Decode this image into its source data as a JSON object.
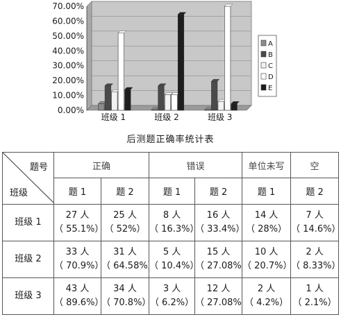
{
  "chart_data": {
    "type": "bar",
    "categories": [
      "班级 1",
      "班级 2",
      "班级 3"
    ],
    "series": [
      {
        "name": "A",
        "color": "#8c8c8c",
        "values": [
          4.5,
          0.5,
          0.5
        ]
      },
      {
        "name": "B",
        "color": "#4a4a4a",
        "values": [
          16.5,
          16.5,
          19.5
        ]
      },
      {
        "name": "C",
        "color": "#f2f2f2",
        "values": [
          12.5,
          10.5,
          6.0
        ]
      },
      {
        "name": "D",
        "color": "#ffffff",
        "values": [
          52.0,
          10.5,
          70.0
        ]
      },
      {
        "name": "E",
        "color": "#1e1e1e",
        "values": [
          14.0,
          64.5,
          4.5
        ]
      }
    ],
    "y_ticks": [
      "0.00%",
      "10.00%",
      "20.00%",
      "30.00%",
      "40.00%",
      "50.00%",
      "60.00%",
      "70.00%"
    ],
    "ylim": [
      0,
      70
    ],
    "title": "",
    "xlabel": "",
    "ylabel": "",
    "legend_position": "right",
    "plot_background": "#c8c8c8"
  },
  "caption": "后测题正确率统计表",
  "table": {
    "corner_top": "题号",
    "corner_bottom": "班级",
    "groups": [
      "正确",
      "错误",
      "单位未写",
      "空"
    ],
    "subheaders": [
      "题 1",
      "题 2",
      "题 1",
      "题 2",
      "题 1",
      "题 2"
    ],
    "rows": [
      {
        "label": "班级 1",
        "cells": [
          {
            "count": "27 人",
            "pct": "（ 55.1%）"
          },
          {
            "count": "25 人",
            "pct": "（ 52%）"
          },
          {
            "count": "8 人",
            "pct": "（ 16.3%）"
          },
          {
            "count": "16 人",
            "pct": "（ 33.4%）"
          },
          {
            "count": "14 人",
            "pct": "（ 28%）"
          },
          {
            "count": "7 人",
            "pct": "（ 14.6%）"
          }
        ]
      },
      {
        "label": "班级 2",
        "cells": [
          {
            "count": "33 人",
            "pct": "（ 70.9%）"
          },
          {
            "count": "31 人",
            "pct": "（ 64.58%）"
          },
          {
            "count": "5 人",
            "pct": "（ 10.4%）"
          },
          {
            "count": "15 人",
            "pct": "（ 27.08%）"
          },
          {
            "count": "10 人",
            "pct": "（ 20.7%）"
          },
          {
            "count": "2 人",
            "pct": "（ 8.33%）"
          }
        ]
      },
      {
        "label": "班级 3",
        "cells": [
          {
            "count": "43 人",
            "pct": "（ 89.6%）"
          },
          {
            "count": "34 人",
            "pct": "（ 70.8%）"
          },
          {
            "count": "3 人",
            "pct": "（ 6.2%）"
          },
          {
            "count": "12 人",
            "pct": "（ 27.08%）"
          },
          {
            "count": "2 人",
            "pct": "（ 4.2%）"
          },
          {
            "count": "1 人",
            "pct": "（ 2.1%）"
          }
        ]
      }
    ]
  }
}
